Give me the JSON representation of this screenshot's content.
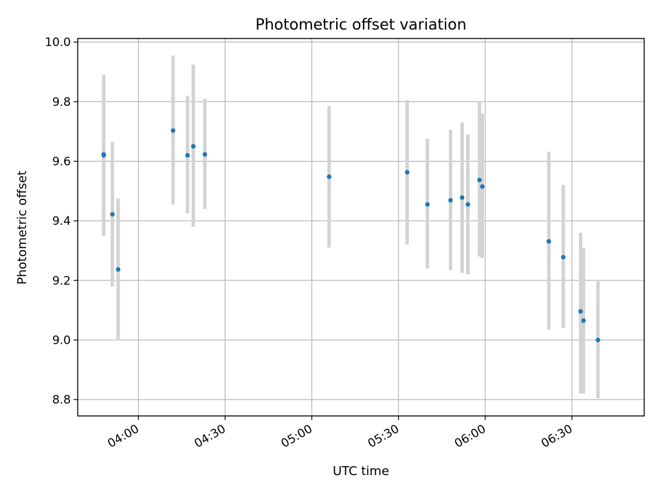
{
  "chart_data": {
    "type": "scatter",
    "title": "Photometric offset variation",
    "xlabel": "UTC time",
    "ylabel": "Photometric offset",
    "x_axis": "time",
    "xlim": [
      "03:39",
      "06:55"
    ],
    "ylim": [
      8.745,
      10.012
    ],
    "x_ticks": [
      "04:00",
      "04:30",
      "05:00",
      "05:30",
      "06:00",
      "06:30"
    ],
    "y_ticks": [
      "8.8",
      "9.0",
      "9.2",
      "9.4",
      "9.6",
      "9.8",
      "10.0"
    ],
    "grid": true,
    "point_color": "#1f77b4",
    "errorbar_color": "#d3d3d3",
    "points": [
      {
        "x": "03:48",
        "y": 9.623,
        "lo": 9.35,
        "hi": 9.875
      },
      {
        "x": "03:48",
        "y": 9.62,
        "lo": 9.36,
        "hi": 9.89
      },
      {
        "x": "03:51",
        "y": 9.422,
        "lo": 9.18,
        "hi": 9.665
      },
      {
        "x": "03:53",
        "y": 9.237,
        "lo": 9.0,
        "hi": 9.475
      },
      {
        "x": "04:12",
        "y": 9.703,
        "lo": 9.455,
        "hi": 9.955
      },
      {
        "x": "04:17",
        "y": 9.62,
        "lo": 9.425,
        "hi": 9.82
      },
      {
        "x": "04:19",
        "y": 9.65,
        "lo": 9.38,
        "hi": 9.925
      },
      {
        "x": "04:23",
        "y": 9.623,
        "lo": 9.44,
        "hi": 9.81
      },
      {
        "x": "05:06",
        "y": 9.548,
        "lo": 9.31,
        "hi": 9.785
      },
      {
        "x": "05:33",
        "y": 9.563,
        "lo": 9.32,
        "hi": 9.805
      },
      {
        "x": "05:40",
        "y": 9.455,
        "lo": 9.24,
        "hi": 9.675
      },
      {
        "x": "05:48",
        "y": 9.469,
        "lo": 9.235,
        "hi": 9.705
      },
      {
        "x": "05:52",
        "y": 9.478,
        "lo": 9.225,
        "hi": 9.73
      },
      {
        "x": "05:54",
        "y": 9.455,
        "lo": 9.22,
        "hi": 9.69
      },
      {
        "x": "05:58",
        "y": 9.537,
        "lo": 9.28,
        "hi": 9.8
      },
      {
        "x": "05:59",
        "y": 9.515,
        "lo": 9.275,
        "hi": 9.76
      },
      {
        "x": "06:22",
        "y": 9.331,
        "lo": 9.035,
        "hi": 9.632
      },
      {
        "x": "06:27",
        "y": 9.278,
        "lo": 9.04,
        "hi": 9.52
      },
      {
        "x": "06:33",
        "y": 9.096,
        "lo": 8.82,
        "hi": 9.36
      },
      {
        "x": "06:34",
        "y": 9.065,
        "lo": 8.82,
        "hi": 9.31
      },
      {
        "x": "06:39",
        "y": 9.0,
        "lo": 8.805,
        "hi": 9.197
      }
    ]
  }
}
